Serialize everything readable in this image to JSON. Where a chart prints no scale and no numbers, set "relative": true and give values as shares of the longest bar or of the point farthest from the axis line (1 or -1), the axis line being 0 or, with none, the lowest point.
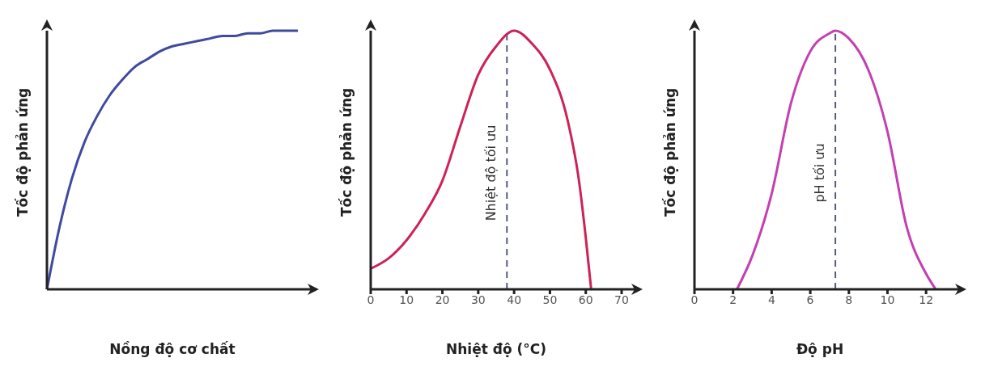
{
  "chart_data": [
    {
      "type": "line",
      "relative": true,
      "ylabel": "Tốc độ phản ứng",
      "xlabel": "Nồng độ cơ chất",
      "categories": [
        null,
        null,
        null,
        null,
        null,
        null,
        null,
        null,
        null,
        null,
        null,
        null,
        null,
        null,
        null,
        null,
        null,
        null,
        null,
        null,
        null
      ],
      "color": "#3f4aa0",
      "values": [
        0,
        0.24,
        0.43,
        0.57,
        0.67,
        0.75,
        0.81,
        0.86,
        0.89,
        0.92,
        0.94,
        0.95,
        0.96,
        0.97,
        0.98,
        0.98,
        0.99,
        0.99,
        1,
        1,
        1
      ],
      "tick_labels": false
    },
    {
      "type": "line",
      "relative": true,
      "ylabel": "Tốc độ phản ứng",
      "xlabel": "Nhiệt độ (°C)",
      "x": [
        0,
        5,
        10,
        15,
        20,
        25,
        30,
        35,
        40,
        45,
        50,
        55,
        58,
        60,
        61.5
      ],
      "values": [
        0.08,
        0.12,
        0.19,
        0.29,
        0.42,
        0.63,
        0.83,
        0.94,
        1,
        0.95,
        0.85,
        0.65,
        0.43,
        0.2,
        0
      ],
      "color": "#cc2257",
      "xlim": [
        0,
        70
      ],
      "xticks": [
        0,
        10,
        20,
        30,
        40,
        50,
        60,
        70
      ],
      "tick_labels": "x",
      "ref_lines": [
        {
          "axis": "x",
          "value": 38,
          "label": "Nhiệt độ tối ưu",
          "line_style": "dashed",
          "color": "#555a80"
        }
      ]
    },
    {
      "type": "line",
      "relative": true,
      "ylabel": "Tốc độ phản ứng",
      "xlabel": "Độ pH",
      "x": [
        2.2,
        3,
        4,
        5,
        6,
        7,
        7.3,
        8,
        9,
        10,
        11,
        12,
        12.5
      ],
      "values": [
        0,
        0.13,
        0.37,
        0.72,
        0.92,
        0.99,
        1,
        0.97,
        0.85,
        0.61,
        0.24,
        0.06,
        0
      ],
      "color": "#c43fb0",
      "xlim": [
        0,
        13
      ],
      "xticks": [
        0,
        2,
        4,
        6,
        8,
        10,
        12
      ],
      "tick_labels": "x",
      "ref_lines": [
        {
          "axis": "x",
          "value": 7.3,
          "label": "pH tối ưu",
          "line_style": "dashed",
          "color": "#555a80"
        }
      ]
    }
  ]
}
